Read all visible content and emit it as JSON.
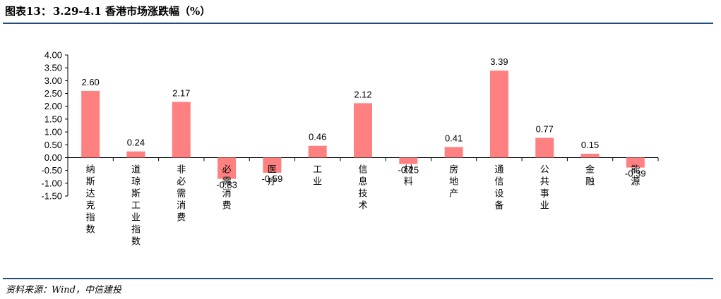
{
  "header": {
    "title_prefix": "图表13：",
    "title_main": "3.29-4.1 香港市场涨跌幅（%）"
  },
  "footer": {
    "source": "资料来源：Wind，中信建投"
  },
  "colors": {
    "bar": "#ff8080",
    "rule": "#1f4e79",
    "axis": "#000000"
  },
  "chart_data": {
    "type": "bar",
    "title": "3.29-4.1 香港市场涨跌幅（%）",
    "xlabel": "",
    "ylabel": "",
    "ylim": [
      -1.5,
      4.0
    ],
    "yticks": [
      "4.00",
      "3.50",
      "3.00",
      "2.50",
      "2.00",
      "1.50",
      "1.00",
      "0.50",
      "0.00",
      "-0.50",
      "-1.00",
      "-1.50"
    ],
    "grid": false,
    "legend": "none",
    "categories": [
      "纳斯达克指数",
      "道琼斯工业指数",
      "非必需消费",
      "必需消费",
      "医疗",
      "工业",
      "信息技术",
      "材料",
      "房地产",
      "通信设备",
      "公共事业",
      "金融",
      "能源"
    ],
    "values": [
      2.6,
      0.24,
      2.17,
      -0.83,
      -0.59,
      0.46,
      2.12,
      -0.25,
      0.41,
      3.39,
      0.77,
      0.15,
      -0.39
    ],
    "value_labels": [
      "2.60",
      "0.24",
      "2.17",
      "-0.83",
      "-0.59",
      "0.46",
      "2.12",
      "-0.25",
      "0.41",
      "3.39",
      "0.77",
      "0.15",
      "-0.39"
    ]
  }
}
